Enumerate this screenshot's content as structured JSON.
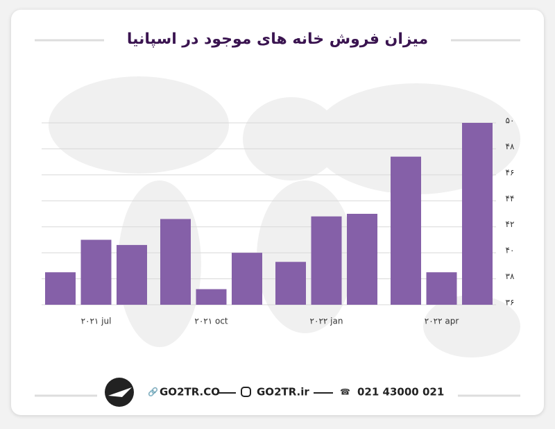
{
  "chart_data": {
    "type": "bar",
    "title": "میزان فروش خانه های موجود در اسپانیا",
    "categories": [
      null,
      "۲۰۲۱ jul",
      null,
      null,
      "۲۰۲۱ oct",
      null,
      null,
      "۲۰۲۲ jan",
      null,
      null,
      "۲۰۲۲ apr",
      null
    ],
    "values": [
      38.5,
      41.0,
      40.6,
      42.6,
      37.2,
      40.0,
      39.3,
      42.8,
      43.0,
      47.4,
      38.5,
      50.0
    ],
    "color": "#8560a8",
    "ylim": [
      36,
      50
    ],
    "yticks": [
      {
        "value": 36,
        "label": "۳۶"
      },
      {
        "value": 38,
        "label": "۳۸"
      },
      {
        "value": 40,
        "label": "۴۰"
      },
      {
        "value": 42,
        "label": "۴۲"
      },
      {
        "value": 44,
        "label": "۴۴"
      },
      {
        "value": 46,
        "label": "۴۶"
      },
      {
        "value": 48,
        "label": "۴۸"
      },
      {
        "value": 50,
        "label": "۵۰"
      }
    ],
    "grid": true
  },
  "footer": {
    "website": "GO2TR.CO",
    "instagram": "GO2TR.ir",
    "phone": "021 43000 021"
  }
}
